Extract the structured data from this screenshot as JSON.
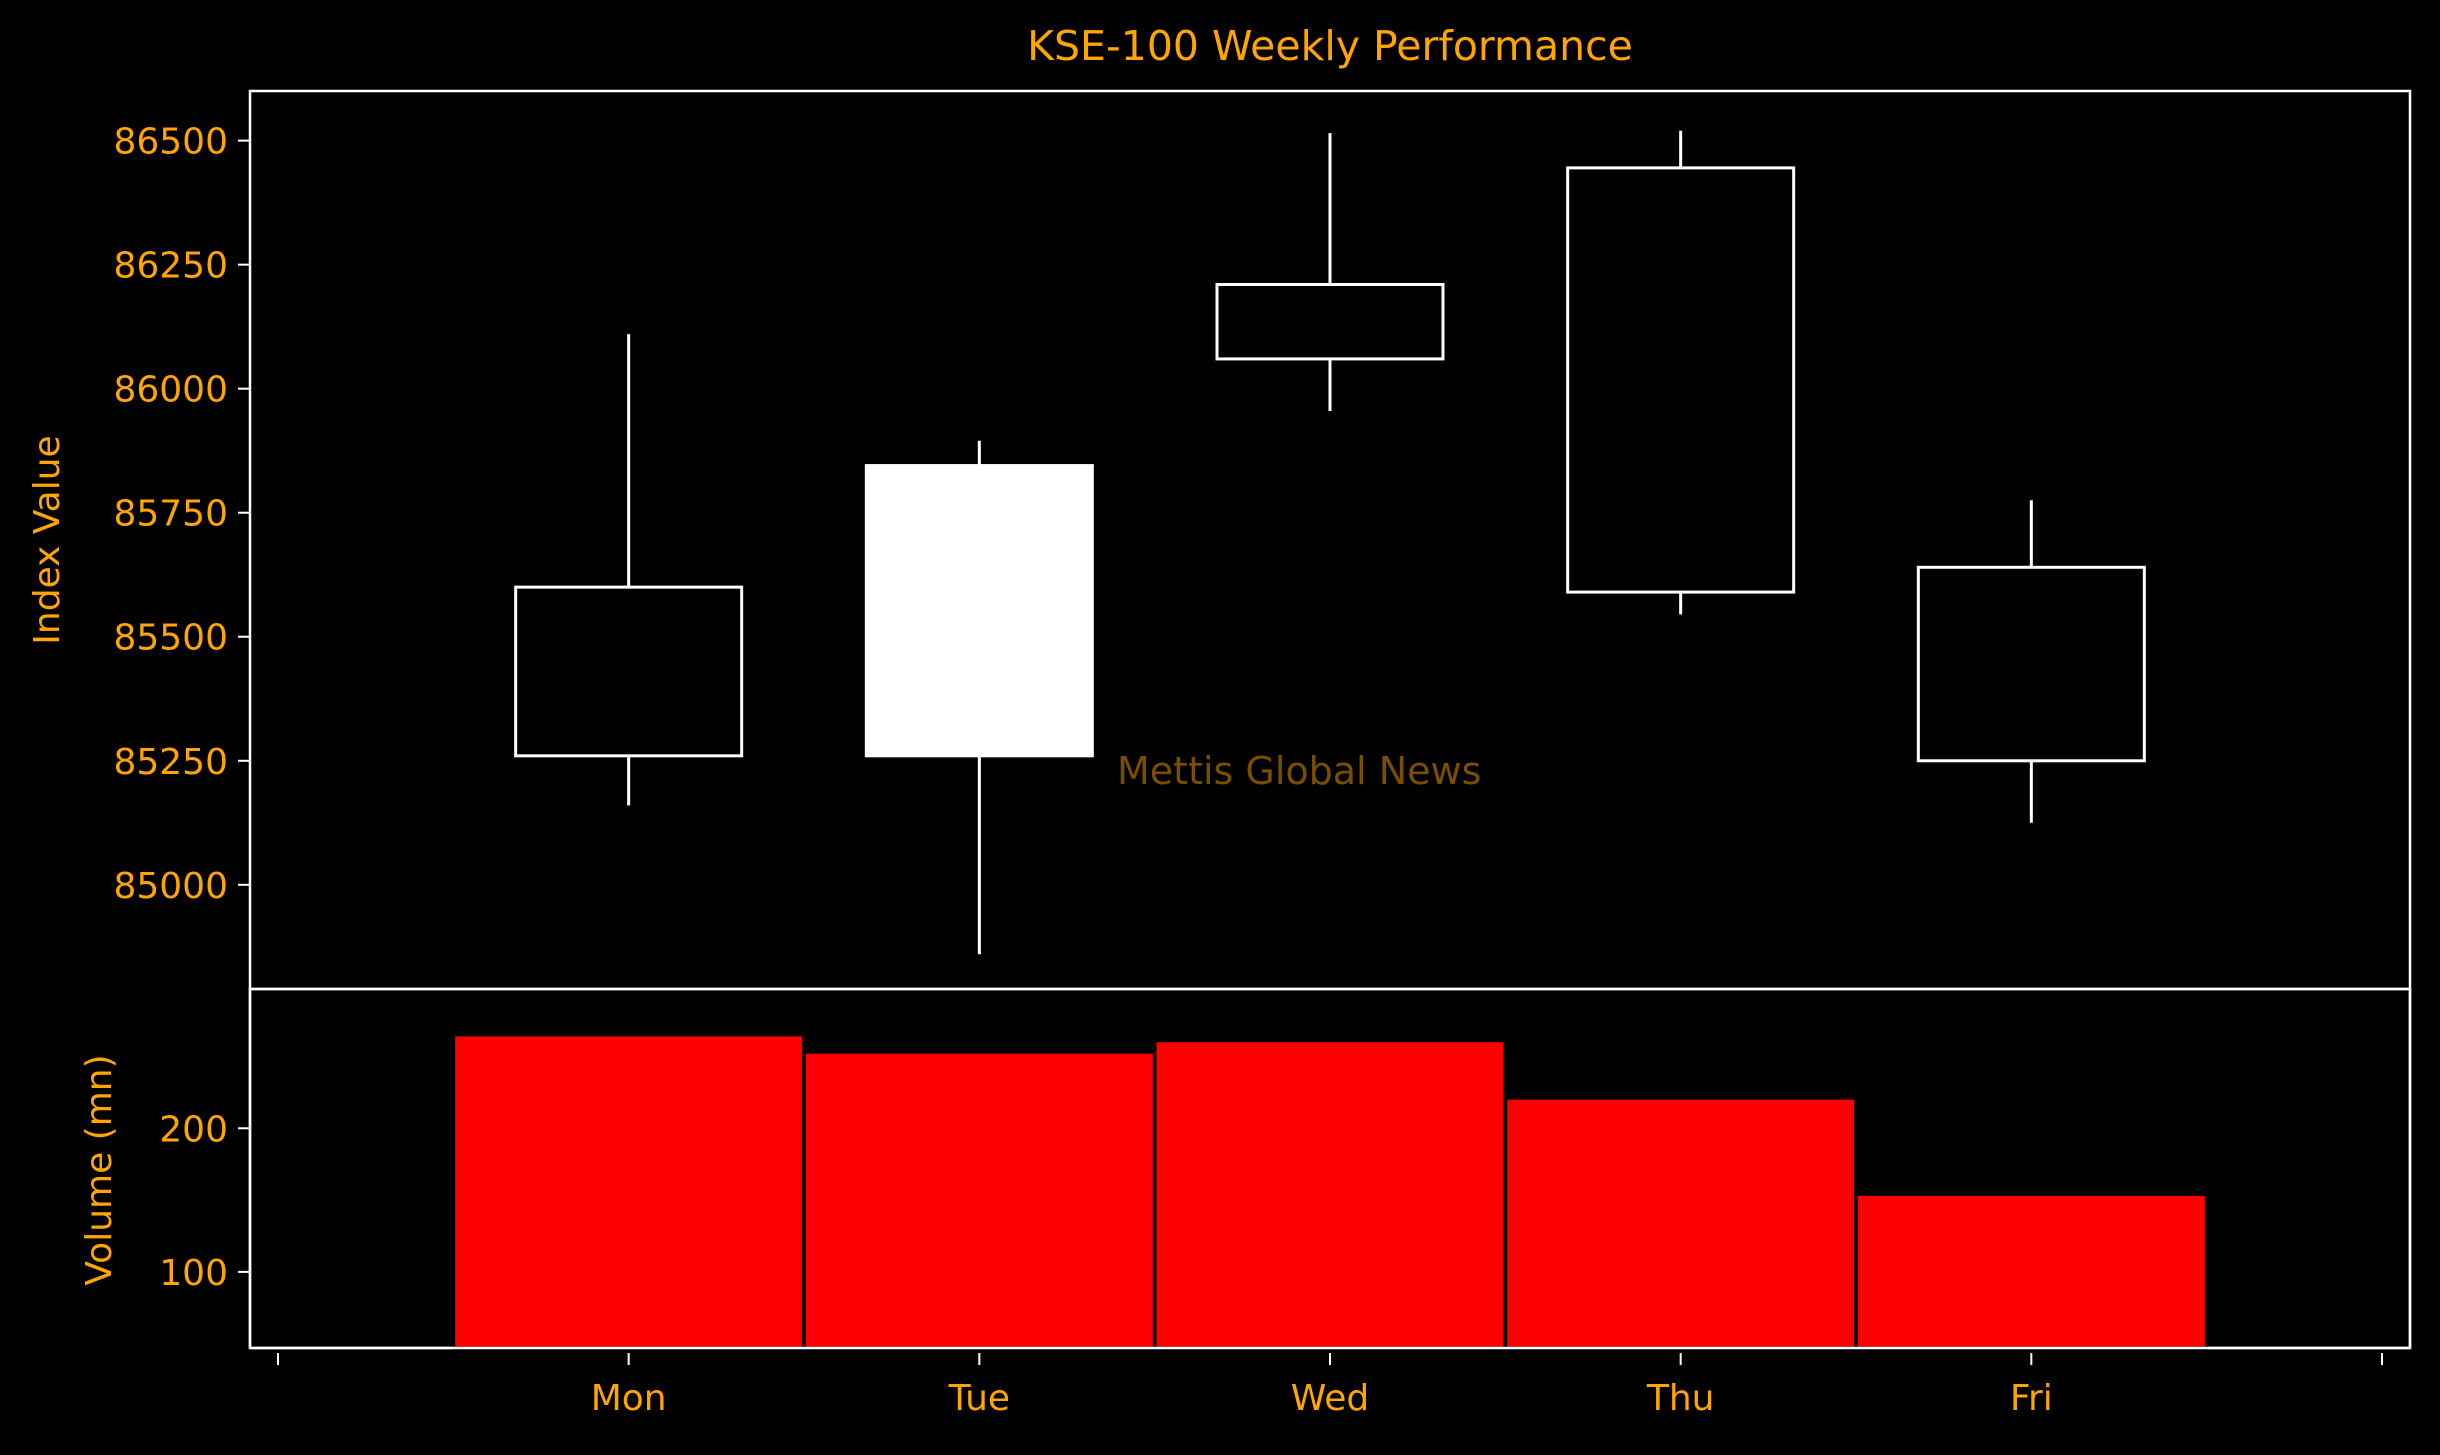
{
  "chart_data": {
    "type": "candlestick",
    "title": "KSE-100 Weekly Performance",
    "categories": [
      "Mon",
      "Tue",
      "Wed",
      "Thu",
      "Fri"
    ],
    "price_panel": {
      "ylabel": "Index Value",
      "ylim": [
        84790,
        86600
      ],
      "yticks": [
        85000,
        85250,
        85500,
        85750,
        86000,
        86250,
        86500
      ],
      "ohlc": [
        {
          "day": "Mon",
          "open": 85260,
          "high": 86110,
          "low": 85160,
          "close": 85600
        },
        {
          "day": "Tue",
          "open": 85845,
          "high": 85895,
          "low": 84860,
          "close": 85260
        },
        {
          "day": "Wed",
          "open": 86060,
          "high": 86515,
          "low": 85955,
          "close": 86210
        },
        {
          "day": "Thu",
          "open": 85590,
          "high": 86520,
          "low": 85545,
          "close": 86445
        },
        {
          "day": "Fri",
          "open": 85250,
          "high": 85775,
          "low": 85125,
          "close": 85640
        }
      ],
      "rising_style": "hollow",
      "falling_style": "filled"
    },
    "volume_panel": {
      "ylabel": "Volume (mn)",
      "ylim": [
        47,
        297
      ],
      "yticks": [
        100,
        200
      ],
      "values": [
        265,
        253,
        261,
        221,
        154
      ],
      "bar_color": "#ff0000"
    },
    "watermark": "Mettis Global News",
    "grid": false,
    "colors": {
      "background": "#000000",
      "text": "#ffa500",
      "axes": "#ffffff",
      "candle": "#ffffff",
      "volume": "#ff0000",
      "watermark": "#7a4e00"
    }
  }
}
